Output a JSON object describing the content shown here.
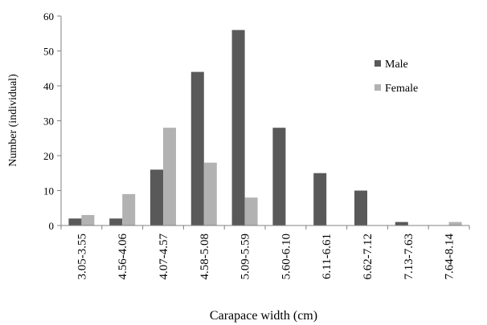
{
  "chart_data": {
    "type": "bar",
    "title": "",
    "xlabel": "Carapace width (cm)",
    "ylabel": "Number  (individual)",
    "ylim": [
      0,
      60
    ],
    "yticks": [
      0,
      10,
      20,
      30,
      40,
      50,
      60
    ],
    "grid": false,
    "legend_position": "right",
    "categories": [
      "3.05-3.55",
      "4.56-4.06",
      "4.07-4.57",
      "4.58-5.08",
      "5.09-5.59",
      "5.60-6.10",
      "6.11-6.61",
      "6.62-7.12",
      "7.13-7.63",
      "7.64-8.14"
    ],
    "series": [
      {
        "name": "Male",
        "color": "#595959",
        "values": [
          2,
          2,
          16,
          44,
          56,
          28,
          15,
          10,
          1,
          0
        ]
      },
      {
        "name": "Female",
        "color": "#b2b2b2",
        "values": [
          3,
          9,
          28,
          18,
          8,
          0,
          0,
          0,
          0,
          1
        ]
      }
    ]
  }
}
